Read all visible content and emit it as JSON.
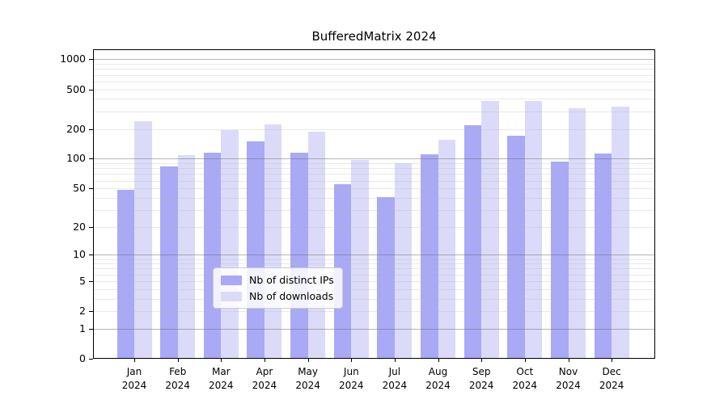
{
  "chart_data": {
    "type": "bar",
    "title": "BufferedMatrix 2024",
    "categories": [
      [
        "Jan",
        "2024"
      ],
      [
        "Feb",
        "2024"
      ],
      [
        "Mar",
        "2024"
      ],
      [
        "Apr",
        "2024"
      ],
      [
        "May",
        "2024"
      ],
      [
        "Jun",
        "2024"
      ],
      [
        "Jul",
        "2024"
      ],
      [
        "Aug",
        "2024"
      ],
      [
        "Sep",
        "2024"
      ],
      [
        "Oct",
        "2024"
      ],
      [
        "Nov",
        "2024"
      ],
      [
        "Dec",
        "2024"
      ]
    ],
    "series": [
      {
        "name": "Nb of distinct IPs",
        "color": "#a9a9f6",
        "values": [
          48,
          84,
          115,
          150,
          115,
          55,
          41,
          110,
          217,
          170,
          94,
          113
        ]
      },
      {
        "name": "Nb of downloads",
        "color": "#dbdbf9",
        "values": [
          240,
          108,
          193,
          221,
          186,
          97,
          90,
          154,
          380,
          380,
          325,
          335
        ]
      }
    ],
    "xlabel": "",
    "ylabel": "",
    "yscale": "symlog-log1p",
    "ylim": [
      0,
      1260
    ],
    "y_ticks": [
      0,
      1,
      2,
      5,
      10,
      20,
      50,
      100,
      200,
      500,
      1000
    ],
    "y_major_gridlines": [
      1,
      10,
      100,
      1000
    ],
    "y_minor_gridlines": [
      2,
      3,
      4,
      5,
      6,
      7,
      8,
      9,
      20,
      30,
      40,
      50,
      60,
      70,
      80,
      90,
      200,
      300,
      400,
      500,
      600,
      700,
      800,
      900
    ],
    "grid": "horizontal",
    "legend_position": "bottom-center"
  }
}
